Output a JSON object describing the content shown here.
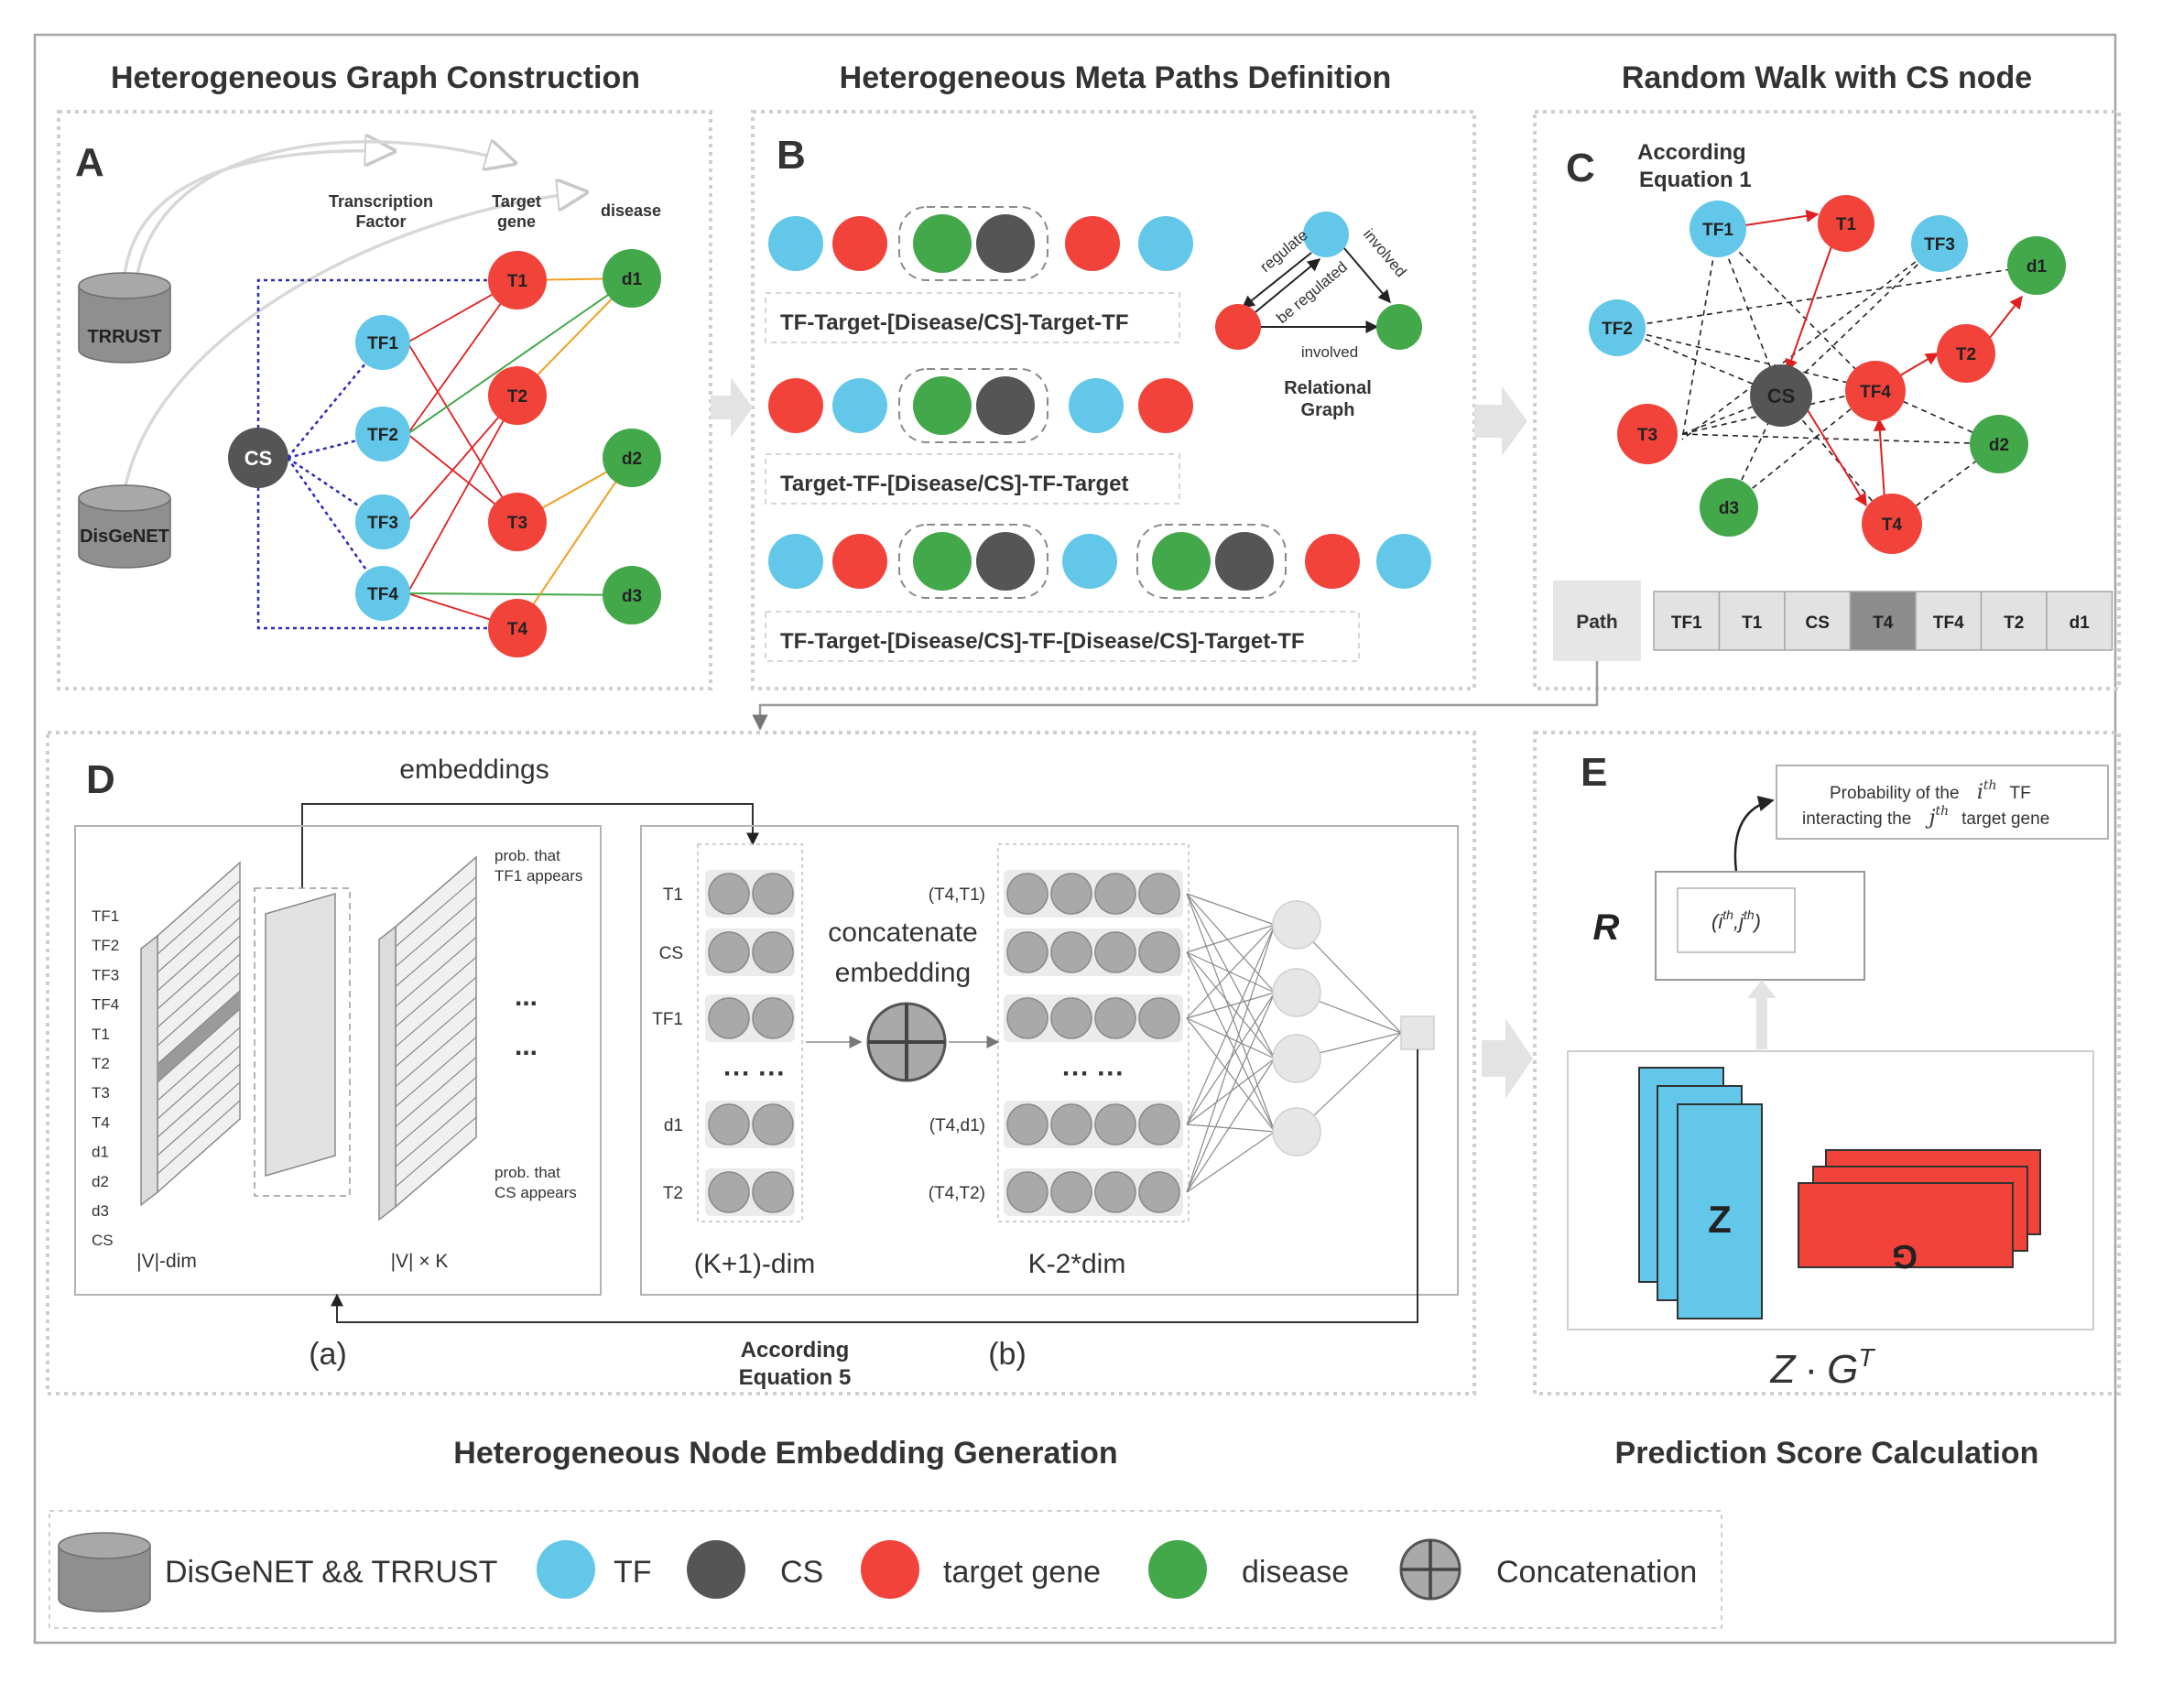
{
  "colors": {
    "tf": "#62c7e8",
    "cs": "#555555",
    "target": "#f1433a",
    "disease": "#43a84a",
    "frame": "#b3b3b3",
    "dash": "#cfcfcf",
    "database": "#8f8f8f"
  },
  "panels": {
    "a": {
      "heading": "Heterogeneous Graph Construction",
      "letter": "A",
      "databases": [
        "TRRUST",
        "DisGeNET"
      ],
      "col_labels": {
        "tf": "Transcription Factor",
        "target": "Target gene",
        "disease": "disease"
      },
      "hub": "CS",
      "tfs": [
        "TF1",
        "TF2",
        "TF3",
        "TF4"
      ],
      "targets": [
        "T1",
        "T2",
        "T3",
        "T4"
      ],
      "diseases": [
        "d1",
        "d2",
        "d3"
      ]
    },
    "b": {
      "heading": "Heterogeneous Meta Paths Definition",
      "letter": "B",
      "paths": [
        "TF-Target-[Disease/CS]-Target-TF",
        "Target-TF-[Disease/CS]-TF-Target",
        "TF-Target-[Disease/CS]-TF-[Disease/CS]-Target-TF"
      ],
      "relational": {
        "edge_labels": [
          "regulate",
          "be regulated",
          "involved",
          "involved"
        ],
        "title": "Relational Graph"
      }
    },
    "c": {
      "heading": "Random Walk with CS node",
      "letter": "C",
      "note": "According Equation 1",
      "path_label": "Path",
      "path_nodes": [
        "TF1",
        "T1",
        "CS",
        "T4",
        "TF4",
        "T2",
        "d1"
      ],
      "highlight_node": "T4",
      "nodes": [
        "TF1",
        "T1",
        "TF3",
        "d1",
        "TF2",
        "T2",
        "CS",
        "TF4",
        "T3",
        "d2",
        "d3",
        "T4"
      ]
    },
    "d": {
      "heading": "Heterogeneous Node Embedding Generation",
      "letter": "D",
      "embeddings_label": "embeddings",
      "vocab": [
        "TF1",
        "TF2",
        "TF3",
        "TF4",
        "T1",
        "T2",
        "T3",
        "T4",
        "d1",
        "d2",
        "d3",
        "CS"
      ],
      "prob_top": "prob. that TF1 appears",
      "prob_bottom": "prob. that CS appears",
      "dots": "...",
      "dim_left": "|V|-dim",
      "dim_right": "|V| × K",
      "input_rows": [
        "T1",
        "CS",
        "TF1",
        "d1",
        "T2"
      ],
      "ellipsis": "··· ···",
      "concat_label": "concatenate embedding",
      "pair_rows": [
        "(T4,T1)",
        "(T4,d1)",
        "(T4,T2)"
      ],
      "dim_k1": "(K+1)-dim",
      "dim_k2": "K-2*dim",
      "sub_a": "(a)",
      "sub_b": "(b)",
      "note": "According Equation 5"
    },
    "e": {
      "heading": "Prediction Score Calculation",
      "letter": "E",
      "prob_text": {
        "p1": "Probability of the",
        "i": "i",
        "th": "th",
        "p2": "TF",
        "p3": "interacting the",
        "j": "j",
        "p4": "target gene"
      },
      "r_label": "R",
      "r_cell": {
        "open": "(",
        "i": "i",
        "th": "th",
        "comma": ",",
        "j": "j",
        "close": ")"
      },
      "z_label": "Z",
      "g_label": "G",
      "formula": {
        "z": "Z",
        "dot": "·",
        "g": "G",
        "t": "T"
      }
    }
  },
  "legend": [
    {
      "kind": "database",
      "label": "DisGeNET && TRRUST"
    },
    {
      "kind": "tf",
      "label": "TF"
    },
    {
      "kind": "cs",
      "label": "CS"
    },
    {
      "kind": "target",
      "label": "target gene"
    },
    {
      "kind": "disease",
      "label": "disease"
    },
    {
      "kind": "concat",
      "label": "Concatenation"
    }
  ]
}
